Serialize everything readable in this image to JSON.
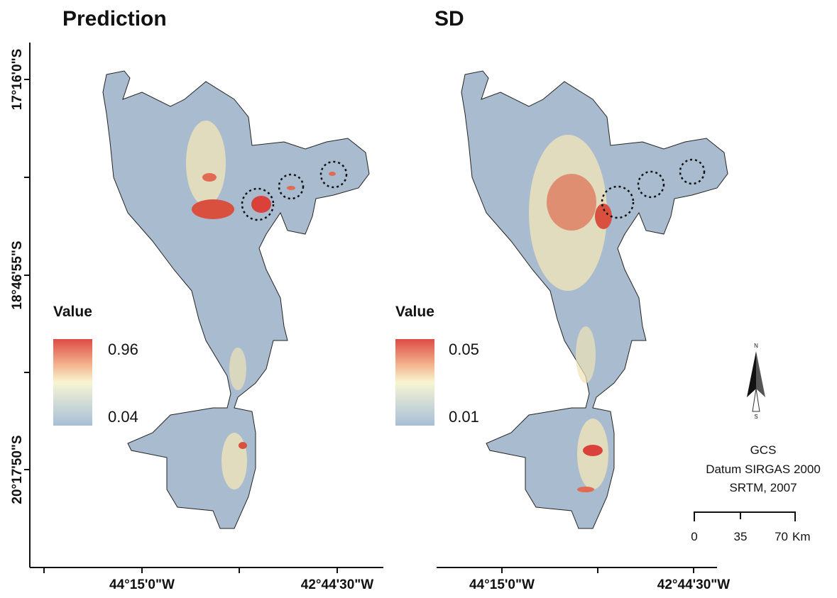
{
  "panels": [
    {
      "title": "Prediction",
      "legend": {
        "title": "Value",
        "max": "0.96",
        "min": "0.04"
      },
      "x_labels": [
        "44°15'0\"W",
        "42°44'30\"W"
      ]
    },
    {
      "title": "SD",
      "legend": {
        "title": "Value",
        "max": "0.05",
        "min": "0.01"
      },
      "x_labels": [
        "44°15'0\"W",
        "42°44'30\"W"
      ]
    }
  ],
  "y_labels": [
    "17°16'0\"S",
    "18°46'55\"S",
    "20°17'50\"S"
  ],
  "north": {
    "n": "N",
    "s": "S"
  },
  "credits": [
    "GCS",
    "Datum SIRGAS 2000",
    "SRTM, 2007"
  ],
  "scale_bar": {
    "ticks": [
      "0",
      "35",
      "70"
    ],
    "unit": "Km"
  }
}
